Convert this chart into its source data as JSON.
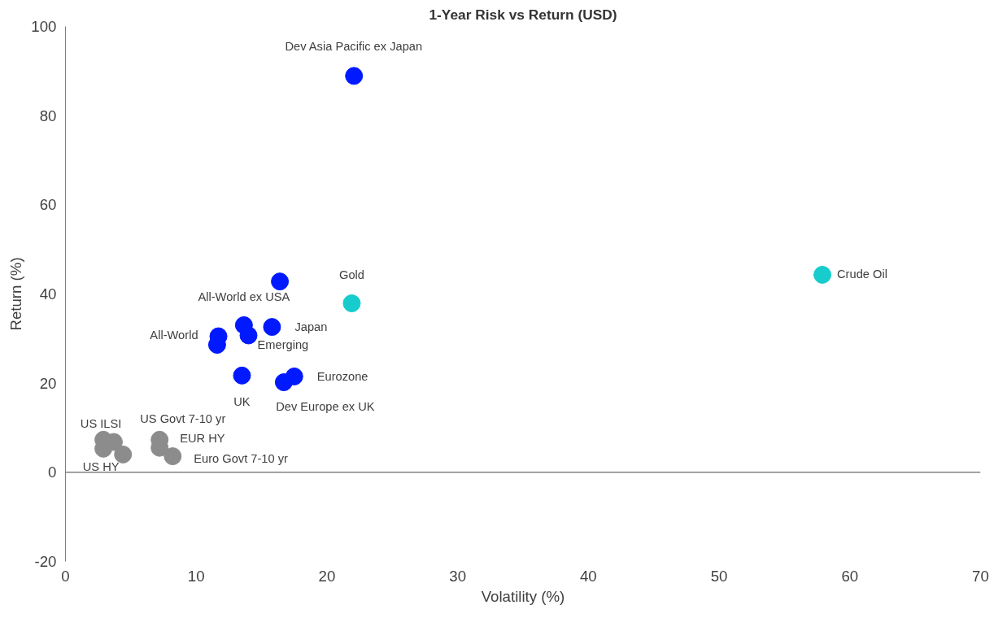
{
  "chart_data": {
    "type": "scatter",
    "title": "1-Year Risk vs Return (USD)",
    "xlabel": "Volatility (%)",
    "ylabel": "Return (%)",
    "xlim": [
      0,
      70
    ],
    "xticks": [
      0,
      10,
      20,
      30,
      40,
      50,
      60,
      70
    ],
    "ylim": [
      -20,
      100
    ],
    "yticks": [
      -20,
      0,
      20,
      40,
      60,
      80,
      100
    ],
    "grid": false,
    "marker": "circle",
    "ref_lines": [
      {
        "axis": "y",
        "value": 0,
        "color": "#808080"
      }
    ],
    "series": [
      {
        "color": "#0019ff",
        "x": [
          22.07,
          16.4,
          13.65,
          15.8,
          14.0,
          11.7,
          11.6,
          13.5,
          17.5,
          16.7
        ],
        "values": [
          88.9,
          42.8,
          33.0,
          32.6,
          30.7,
          30.5,
          28.6,
          21.7,
          21.5,
          20.2
        ]
      },
      {
        "color": "#17cccc",
        "x": [
          21.9,
          57.9
        ],
        "values": [
          37.9,
          44.3
        ]
      },
      {
        "color": "#8c8c8c",
        "x": [
          3.7,
          2.9,
          4.4,
          7.2,
          7.2,
          8.2,
          2.9
        ],
        "values": [
          6.8,
          5.3,
          4.0,
          7.3,
          5.5,
          3.6,
          7.3
        ]
      }
    ],
    "annotations": [
      {
        "text": "Dev Asia Pacific ex Japan",
        "x": 22.07,
        "y": 88.9
      },
      {
        "text": "Gold",
        "x": 21.9,
        "y": 37.9
      },
      {
        "text": "Crude Oil",
        "x": 57.9,
        "y": 44.3
      },
      {
        "text": "All-World ex USA",
        "x": 13.65,
        "y": 33.0
      },
      {
        "text": "Japan",
        "x": 15.8,
        "y": 32.6
      },
      {
        "text": "Emerging",
        "x": 14.0,
        "y": 30.7
      },
      {
        "text": "All-World",
        "x": 11.7,
        "y": 30.5
      },
      {
        "text": "UK",
        "x": 13.5,
        "y": 21.7
      },
      {
        "text": "Eurozone",
        "x": 17.5,
        "y": 21.5
      },
      {
        "text": "Dev Europe ex UK",
        "x": 16.7,
        "y": 20.2
      },
      {
        "text": "US ILSI",
        "x": 2.9,
        "y": 7.3
      },
      {
        "text": "US Govt 7-10 yr",
        "x": 4.4,
        "y": 4.0
      },
      {
        "text": "US HY",
        "x": 2.9,
        "y": 5.3
      },
      {
        "text": "EUR HY",
        "x": 7.2,
        "y": 7.3
      },
      {
        "text": "Euro Govt 7-10 yr",
        "x": 8.2,
        "y": 3.6
      }
    ]
  }
}
